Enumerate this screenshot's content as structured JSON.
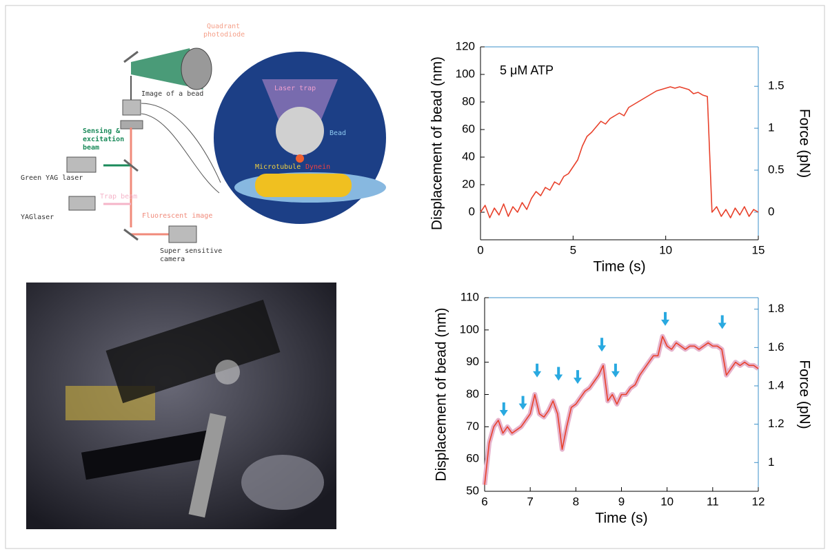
{
  "diagram": {
    "labels": [
      "Quadrant",
      "photodiode",
      "Image of a bead",
      "Laser trap",
      "Bead",
      "Sensing &",
      "excitation",
      "beam",
      "Microtubule",
      "Dynein",
      "Green YAG laser",
      "Trap beam",
      "YAGlaser",
      "Fluorescent image",
      "Super sensitive",
      "camera"
    ]
  },
  "chart_data": [
    {
      "type": "line",
      "annotation": "5 μM ATP",
      "x_label": "Time (s)",
      "y_label": "Displacement of bead (nm)",
      "y2_label": "Force (pN)",
      "color": "#e8402a",
      "x": [
        0,
        0.25,
        0.5,
        0.75,
        1,
        1.25,
        1.5,
        1.75,
        2,
        2.25,
        2.5,
        2.75,
        3,
        3.25,
        3.5,
        3.75,
        4,
        4.25,
        4.5,
        4.75,
        5,
        5.25,
        5.5,
        5.75,
        6,
        6.25,
        6.5,
        6.75,
        7,
        7.25,
        7.5,
        7.75,
        8,
        8.25,
        8.5,
        8.75,
        9,
        9.25,
        9.5,
        9.75,
        10,
        10.25,
        10.5,
        10.75,
        11,
        11.25,
        11.5,
        11.75,
        12,
        12.25,
        12.5,
        12.75,
        13,
        13.25,
        13.5,
        13.75,
        14,
        14.25,
        14.5,
        14.75,
        15
      ],
      "values": [
        0,
        5,
        -4,
        3,
        -2,
        6,
        -3,
        4,
        0,
        7,
        2,
        10,
        15,
        12,
        18,
        16,
        22,
        20,
        26,
        28,
        33,
        38,
        48,
        55,
        58,
        62,
        66,
        64,
        68,
        70,
        72,
        70,
        76,
        78,
        80,
        82,
        84,
        86,
        88,
        89,
        90,
        91,
        90,
        91,
        90,
        89,
        86,
        87,
        85,
        84,
        0,
        4,
        -3,
        2,
        -4,
        3,
        -2,
        4,
        -3,
        2,
        0
      ],
      "xlim": [
        0,
        15
      ],
      "xticks": [
        0,
        5,
        10,
        15
      ],
      "ylim": [
        -20,
        120
      ],
      "yticks": [
        0,
        20,
        40,
        60,
        80,
        100,
        120
      ],
      "y2lim": [
        -0.33,
        1.97
      ],
      "y2ticks": [
        0,
        0.5,
        1,
        1.5
      ]
    },
    {
      "type": "line",
      "x_label": "Time (s)",
      "y_label": "Displacement of bead (nm)",
      "y2_label": "Force (pN)",
      "color": "#e8402a",
      "band_color": "#e6b3cc",
      "x": [
        6,
        6.1,
        6.2,
        6.3,
        6.4,
        6.5,
        6.6,
        6.7,
        6.8,
        6.9,
        7,
        7.1,
        7.2,
        7.3,
        7.4,
        7.5,
        7.6,
        7.7,
        7.8,
        7.9,
        8,
        8.1,
        8.2,
        8.3,
        8.4,
        8.5,
        8.6,
        8.7,
        8.8,
        8.9,
        9,
        9.1,
        9.2,
        9.3,
        9.4,
        9.5,
        9.6,
        9.7,
        9.8,
        9.9,
        10,
        10.1,
        10.2,
        10.3,
        10.4,
        10.5,
        10.6,
        10.7,
        10.8,
        10.9,
        11,
        11.1,
        11.2,
        11.3,
        11.4,
        11.5,
        11.6,
        11.7,
        11.8,
        11.9,
        12
      ],
      "values": [
        52,
        65,
        70,
        72,
        68,
        70,
        68,
        69,
        70,
        72,
        74,
        80,
        74,
        73,
        75,
        78,
        74,
        63,
        70,
        76,
        77,
        79,
        81,
        82,
        84,
        86,
        89,
        78,
        80,
        77,
        80,
        80,
        82,
        83,
        86,
        88,
        90,
        92,
        92,
        98,
        95,
        94,
        96,
        95,
        94,
        95,
        95,
        94,
        95,
        96,
        95,
        95,
        94,
        86,
        88,
        90,
        89,
        90,
        89,
        89,
        88
      ],
      "arrows": {
        "color": "#29a9e0",
        "x": [
          6.42,
          6.84,
          7.15,
          7.62,
          8.04,
          8.57,
          8.87,
          9.96,
          11.21
        ],
        "y": [
          72,
          74,
          84,
          83,
          82,
          92,
          84,
          100,
          99
        ]
      },
      "xlim": [
        6,
        12
      ],
      "xticks": [
        6,
        7,
        8,
        9,
        10,
        11,
        12
      ],
      "ylim": [
        50,
        110
      ],
      "yticks": [
        50,
        60,
        70,
        80,
        90,
        100,
        110
      ],
      "y2lim": [
        0.85,
        1.86
      ],
      "y2ticks": [
        1,
        1.2,
        1.4,
        1.6,
        1.8
      ]
    }
  ]
}
